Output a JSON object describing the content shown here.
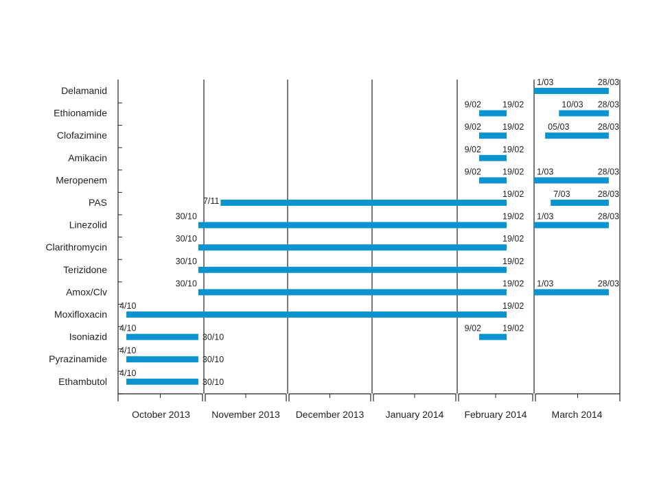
{
  "chart_data": {
    "type": "gantt",
    "title": "",
    "xlabel": "",
    "ylabel": "",
    "bar_color": "#0a93cf",
    "axis_color": "#231f20",
    "grid": "vertical lines at month boundaries",
    "months": [
      {
        "name": "October 2013",
        "start": "2013-10-01",
        "days": 31
      },
      {
        "name": "November 2013",
        "start": "2013-11-01",
        "days": 30
      },
      {
        "name": "December 2013",
        "start": "2013-12-01",
        "days": 31
      },
      {
        "name": "January 2014",
        "start": "2014-01-01",
        "days": 31
      },
      {
        "name": "February 2014",
        "start": "2014-02-01",
        "days": 28
      },
      {
        "name": "March 2014",
        "start": "2014-03-01",
        "days": 31
      }
    ],
    "drugs": [
      {
        "name": "Delamanid",
        "bars": [
          {
            "start": "2014-03-01",
            "end": "2014-03-28",
            "start_label": "1/03",
            "end_label": "28/03"
          }
        ]
      },
      {
        "name": "Ethionamide",
        "bars": [
          {
            "start": "2014-02-09",
            "end": "2014-02-19",
            "start_label": "9/02",
            "end_label": "19/02"
          },
          {
            "start": "2014-03-10",
            "end": "2014-03-28",
            "start_label": "10/03",
            "end_label": "28/03"
          }
        ]
      },
      {
        "name": "Clofazimine",
        "bars": [
          {
            "start": "2014-02-09",
            "end": "2014-02-19",
            "start_label": "9/02",
            "end_label": "19/02"
          },
          {
            "start": "2014-03-05",
            "end": "2014-03-28",
            "start_label": "05/03",
            "end_label": "28/03"
          }
        ]
      },
      {
        "name": "Amikacin",
        "bars": [
          {
            "start": "2014-02-09",
            "end": "2014-02-19",
            "start_label": "9/02",
            "end_label": "19/02"
          }
        ]
      },
      {
        "name": "Meropenem",
        "bars": [
          {
            "start": "2014-02-09",
            "end": "2014-02-19",
            "start_label": "9/02",
            "end_label": "19/02"
          },
          {
            "start": "2014-03-01",
            "end": "2014-03-28",
            "start_label": "1/03",
            "end_label": "28/03"
          }
        ]
      },
      {
        "name": "PAS",
        "bars": [
          {
            "start": "2013-11-07",
            "end": "2014-02-19",
            "start_label": "7/11",
            "end_label": "19/02"
          },
          {
            "start": "2014-03-07",
            "end": "2014-03-28",
            "start_label": "7/03",
            "end_label": "28/03"
          }
        ]
      },
      {
        "name": "Linezolid",
        "bars": [
          {
            "start": "2013-10-30",
            "end": "2014-02-19",
            "start_label": "30/10",
            "end_label": "19/02"
          },
          {
            "start": "2014-03-01",
            "end": "2014-03-28",
            "start_label": "1/03",
            "end_label": "28/03"
          }
        ]
      },
      {
        "name": "Clarithromycin",
        "bars": [
          {
            "start": "2013-10-30",
            "end": "2014-02-19",
            "start_label": "30/10",
            "end_label": "19/02"
          }
        ]
      },
      {
        "name": "Terizidone",
        "bars": [
          {
            "start": "2013-10-30",
            "end": "2014-02-19",
            "start_label": "30/10",
            "end_label": "19/02"
          }
        ]
      },
      {
        "name": "Amox/Clv",
        "bars": [
          {
            "start": "2013-10-30",
            "end": "2014-02-19",
            "start_label": "30/10",
            "end_label": "19/02"
          },
          {
            "start": "2014-03-01",
            "end": "2014-03-28",
            "start_label": "1/03",
            "end_label": "28/03"
          }
        ]
      },
      {
        "name": "Moxifloxacin",
        "bars": [
          {
            "start": "2013-10-04",
            "end": "2014-02-19",
            "start_label": "4/10",
            "end_label": "19/02"
          }
        ]
      },
      {
        "name": "Isoniazid",
        "bars": [
          {
            "start": "2013-10-04",
            "end": "2013-10-30",
            "start_label": "4/10",
            "end_label": "30/10"
          },
          {
            "start": "2014-02-09",
            "end": "2014-02-19",
            "start_label": "9/02",
            "end_label": "19/02"
          }
        ]
      },
      {
        "name": "Pyrazinamide",
        "bars": [
          {
            "start": "2013-10-04",
            "end": "2013-10-30",
            "start_label": "4/10",
            "end_label": "30/10"
          }
        ]
      },
      {
        "name": "Ethambutol",
        "bars": [
          {
            "start": "2013-10-04",
            "end": "2013-10-30",
            "start_label": "4/10",
            "end_label": "30/10"
          }
        ]
      }
    ]
  }
}
